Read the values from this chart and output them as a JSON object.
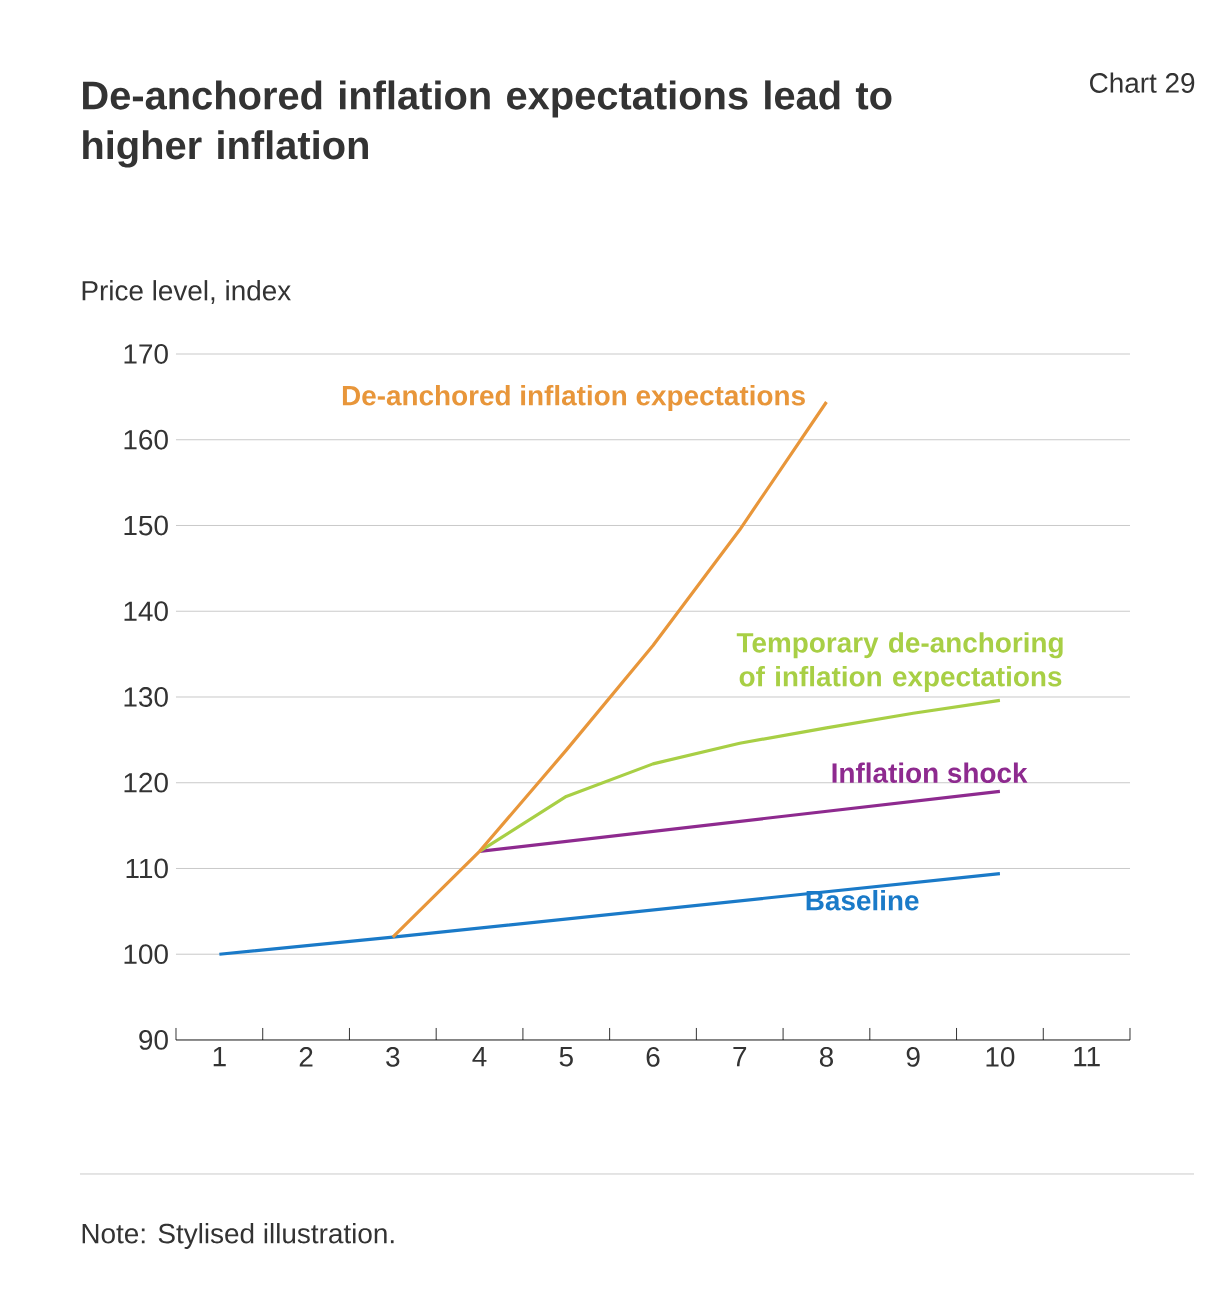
{
  "chart_data": {
    "type": "line",
    "title": "De-anchored inflation expectations lead to higher inflation",
    "ylabel": "Price level, index",
    "annotations": [
      "Chart 29",
      "Note: Stylised illustration."
    ],
    "xlim": [
      0.5,
      11.5
    ],
    "xticks": [
      1,
      2,
      3,
      4,
      5,
      6,
      7,
      8,
      9,
      10,
      11
    ],
    "ylim": [
      90,
      170
    ],
    "yticks": [
      90,
      100,
      110,
      120,
      130,
      140,
      150,
      160,
      170
    ],
    "grid": "y",
    "series": [
      {
        "name": "Baseline",
        "color": "#1a7ac8",
        "x": [
          1,
          3,
          10
        ],
        "values": [
          100,
          102,
          109.4
        ]
      },
      {
        "name": "Inflation shock",
        "color": "#8e2a8f",
        "x": [
          4,
          10
        ],
        "values": [
          112,
          119
        ]
      },
      {
        "name": "Temporary de-anchoring of inflation expectations",
        "color": "#a8cf45",
        "x": [
          4,
          5,
          6,
          7,
          8,
          9,
          10
        ],
        "values": [
          112,
          118.4,
          122.2,
          124.6,
          126.4,
          128.1,
          129.6
        ]
      },
      {
        "name": "De-anchored inflation expectations",
        "color": "#e8963a",
        "x": [
          3,
          4,
          5,
          6,
          7,
          8
        ],
        "values": [
          102,
          112,
          123.8,
          136,
          149.5,
          164.4
        ]
      }
    ]
  }
}
